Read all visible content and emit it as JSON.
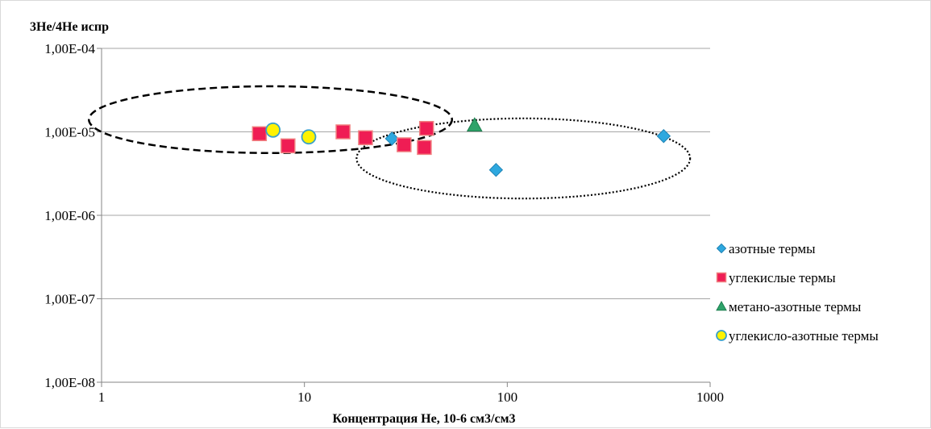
{
  "chart_data": {
    "type": "scatter",
    "title": "",
    "xlabel": "Концентрация He, 10-6 см3/см3",
    "ylabel": "3He/4He испр",
    "x_scale": "log",
    "y_scale": "log",
    "xlim": [
      1,
      1000
    ],
    "ylim": [
      1e-08,
      0.0001
    ],
    "grid": "horizontal major",
    "legend_position": "right",
    "x_tick_labels": [
      "1",
      "10",
      "100",
      "1000"
    ],
    "y_tick_labels": [
      "1,00E-08",
      "1,00E-07",
      "1,00E-06",
      "1,00E-05",
      "1,00E-04"
    ],
    "series": [
      {
        "name": "азотные термы",
        "marker": "diamond",
        "color": "#2ea8df",
        "points": [
          {
            "x": 27,
            "y": 8.3e-06
          },
          {
            "x": 88,
            "y": 3.5e-06
          },
          {
            "x": 590,
            "y": 8.9e-06
          }
        ]
      },
      {
        "name": "углекислые термы",
        "marker": "square",
        "color": "#ef1d54",
        "points": [
          {
            "x": 6,
            "y": 9.5e-06
          },
          {
            "x": 8.3,
            "y": 6.8e-06
          },
          {
            "x": 15.5,
            "y": 1e-05
          },
          {
            "x": 20,
            "y": 8.5e-06
          },
          {
            "x": 31,
            "y": 7e-06
          },
          {
            "x": 39,
            "y": 6.5e-06
          },
          {
            "x": 40,
            "y": 1.1e-05
          }
        ]
      },
      {
        "name": "метано-азотные термы",
        "marker": "triangle",
        "color": "#2ea36a",
        "points": [
          {
            "x": 69,
            "y": 1.2e-05
          }
        ]
      },
      {
        "name": "углекисло-азотные термы",
        "marker": "circle",
        "color": "#fff200",
        "points": [
          {
            "x": 7,
            "y": 1.05e-05
          },
          {
            "x": 10.5,
            "y": 8.7e-06
          }
        ]
      }
    ],
    "annotations": [
      {
        "shape": "ellipse",
        "style": "dashed",
        "center": [
          6.8,
          1.4e-05
        ],
        "rx_decades": 0.895,
        "ry_decades": 0.4
      },
      {
        "shape": "ellipse",
        "style": "dotted",
        "center": [
          120,
          4.8e-06
        ],
        "rx_decades": 0.822,
        "ry_decades": 0.48
      }
    ]
  }
}
